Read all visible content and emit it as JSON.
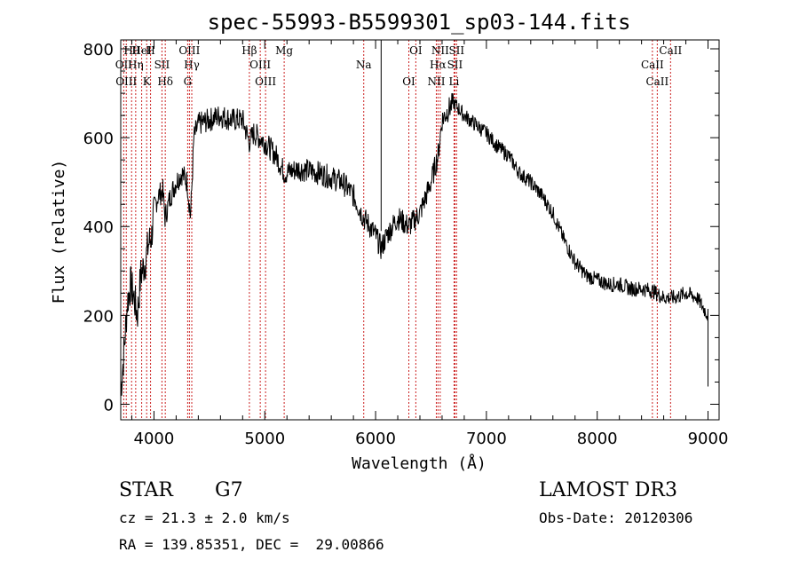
{
  "chart_data": {
    "type": "line",
    "title": "spec-55993-B5599301_sp03-144.fits",
    "xlabel": "Wavelength (Å)",
    "ylabel": "Flux (relative)",
    "xlim": [
      3700,
      9100
    ],
    "ylim": [
      -35,
      820
    ],
    "xticks": [
      4000,
      5000,
      6000,
      7000,
      8000,
      9000
    ],
    "yticks": [
      0,
      200,
      400,
      600,
      800
    ],
    "spectrum_anchors": [
      [
        3700,
        30
      ],
      [
        3730,
        120
      ],
      [
        3760,
        230
      ],
      [
        3790,
        270
      ],
      [
        3820,
        240
      ],
      [
        3850,
        200
      ],
      [
        3880,
        290
      ],
      [
        3920,
        320
      ],
      [
        3950,
        360
      ],
      [
        3980,
        380
      ],
      [
        4000,
        440
      ],
      [
        4040,
        470
      ],
      [
        4080,
        480
      ],
      [
        4100,
        420
      ],
      [
        4150,
        470
      ],
      [
        4200,
        500
      ],
      [
        4250,
        520
      ],
      [
        4300,
        500
      ],
      [
        4330,
        420
      ],
      [
        4360,
        600
      ],
      [
        4400,
        630
      ],
      [
        4500,
        640
      ],
      [
        4600,
        650
      ],
      [
        4700,
        640
      ],
      [
        4800,
        640
      ],
      [
        4860,
        590
      ],
      [
        4900,
        610
      ],
      [
        4950,
        600
      ],
      [
        5000,
        590
      ],
      [
        5100,
        560
      ],
      [
        5180,
        520
      ],
      [
        5300,
        530
      ],
      [
        5500,
        520
      ],
      [
        5700,
        500
      ],
      [
        5800,
        470
      ],
      [
        5890,
        420
      ],
      [
        5950,
        400
      ],
      [
        6000,
        380
      ],
      [
        6050,
        350
      ],
      [
        6100,
        380
      ],
      [
        6200,
        420
      ],
      [
        6300,
        400
      ],
      [
        6400,
        430
      ],
      [
        6500,
        500
      ],
      [
        6563,
        560
      ],
      [
        6600,
        640
      ],
      [
        6650,
        660
      ],
      [
        6700,
        680
      ],
      [
        6800,
        650
      ],
      [
        6900,
        630
      ],
      [
        7000,
        610
      ],
      [
        7100,
        580
      ],
      [
        7200,
        560
      ],
      [
        7300,
        520
      ],
      [
        7400,
        500
      ],
      [
        7500,
        470
      ],
      [
        7600,
        430
      ],
      [
        7700,
        370
      ],
      [
        7800,
        320
      ],
      [
        7900,
        290
      ],
      [
        8000,
        280
      ],
      [
        8100,
        270
      ],
      [
        8200,
        270
      ],
      [
        8300,
        260
      ],
      [
        8400,
        260
      ],
      [
        8500,
        255
      ],
      [
        8600,
        240
      ],
      [
        8700,
        240
      ],
      [
        8800,
        250
      ],
      [
        8900,
        240
      ],
      [
        9000,
        200
      ]
    ],
    "reference_lines": [
      {
        "label": "Hθ",
        "x": 3798
      },
      {
        "label": "OII",
        "x": 3727
      },
      {
        "label": "OIII",
        "x": 3750
      },
      {
        "label": "HeI",
        "x": 3889
      },
      {
        "label": "Hη",
        "x": 3835
      },
      {
        "label": "K",
        "x": 3934
      },
      {
        "label": "H",
        "x": 3969
      },
      {
        "label": "SII",
        "x": 4072
      },
      {
        "label": "Hδ",
        "x": 4102
      },
      {
        "label": "OIII",
        "x": 4320
      },
      {
        "label": "Hγ",
        "x": 4341
      },
      {
        "label": "G",
        "x": 4304
      },
      {
        "label": "Hβ",
        "x": 4861
      },
      {
        "label": "OIII",
        "x": 4959
      },
      {
        "label": "OIII",
        "x": 5007
      },
      {
        "label": "Mg",
        "x": 5175
      },
      {
        "label": "Na",
        "x": 5893
      },
      {
        "label": "OI",
        "x": 6300
      },
      {
        "label": "OI",
        "x": 6363
      },
      {
        "label": "Hα",
        "x": 6563
      },
      {
        "label": "NII",
        "x": 6548
      },
      {
        "label": "NII",
        "x": 6583
      },
      {
        "label": "SII",
        "x": 6716
      },
      {
        "label": "Li",
        "x": 6708
      },
      {
        "label": "SII",
        "x": 6731
      },
      {
        "label": "CaII",
        "x": 8498
      },
      {
        "label": "CaII",
        "x": 8542
      },
      {
        "label": "CaII",
        "x": 8662
      }
    ],
    "marker_line_x": 6050
  },
  "info": {
    "object_class": "STAR",
    "subclass": "G7",
    "survey": "LAMOST DR3",
    "cz": "cz = 21.3 ± 2.0 km/s",
    "obs_date": "Obs-Date: 20120306",
    "coords": "RA = 139.85351, DEC =  29.00866"
  },
  "colors": {
    "spectrum": "#000000",
    "reference_line": "#cc2222",
    "axes": "#000000"
  }
}
